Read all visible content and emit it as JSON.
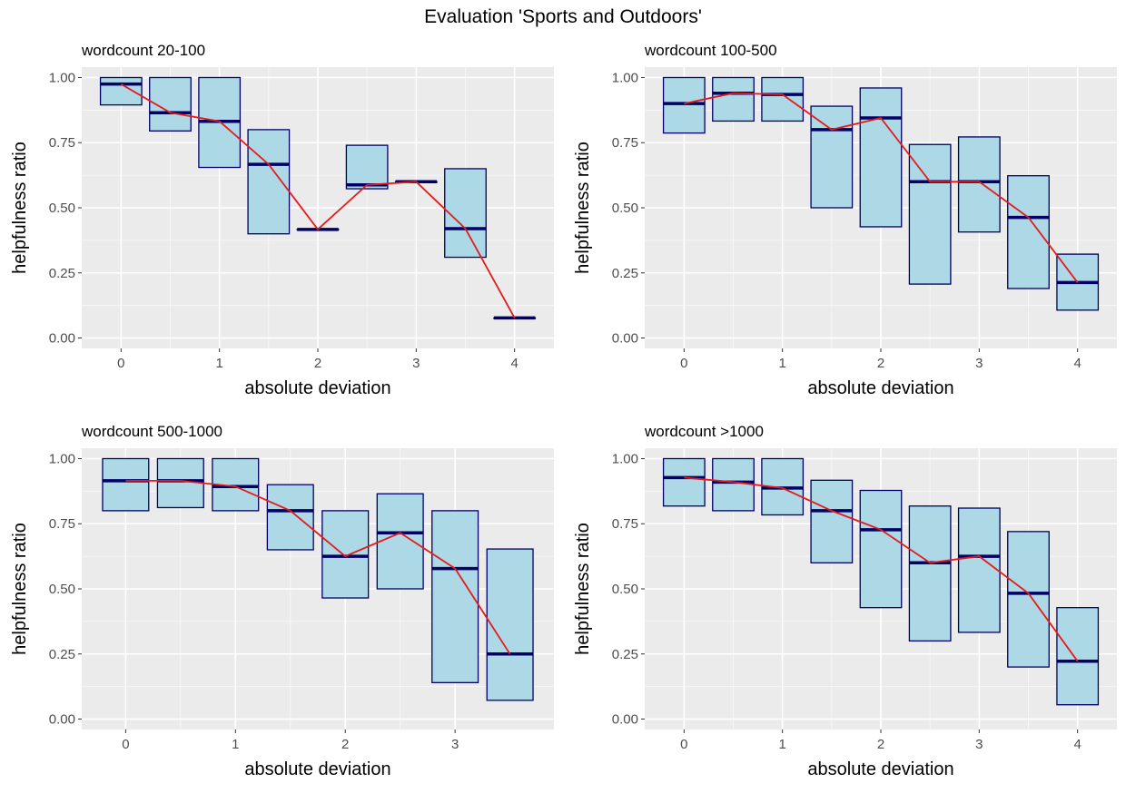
{
  "title": "Evaluation 'Sports and Outdoors'",
  "colors": {
    "panel_bg": "#EBEBEB",
    "grid": "#FFFFFF",
    "box_fill": "#ADD8E6",
    "box_stroke": "#000066",
    "median": "#000066",
    "line": "#E41A1C",
    "text": "#1A1A1A",
    "tick_text": "#4D4D4D"
  },
  "chart_data": [
    {
      "type": "box",
      "title": "wordcount 20-100",
      "xlabel": "absolute deviation",
      "ylabel": "helpfulness ratio",
      "xlim": [
        -0.4,
        4.4
      ],
      "ylim": [
        0,
        1
      ],
      "xticks": [
        0,
        1,
        2,
        3,
        4
      ],
      "yticks": [
        0,
        0.25,
        0.5,
        0.75,
        1
      ],
      "ytick_labels": [
        "0.00",
        "0.25",
        "0.50",
        "0.75",
        "1.00"
      ],
      "grid": true,
      "boxes": [
        {
          "x": 0,
          "q1": 0.895,
          "median": 0.975,
          "q3": 1.0
        },
        {
          "x": 0.5,
          "q1": 0.795,
          "median": 0.865,
          "q3": 1.0
        },
        {
          "x": 1,
          "q1": 0.655,
          "median": 0.832,
          "q3": 1.0
        },
        {
          "x": 1.5,
          "q1": 0.4,
          "median": 0.667,
          "q3": 0.8
        },
        {
          "x": 2,
          "q1": 0.417,
          "median": 0.417,
          "q3": 0.417
        },
        {
          "x": 2.5,
          "q1": 0.573,
          "median": 0.588,
          "q3": 0.74
        },
        {
          "x": 3,
          "q1": 0.6,
          "median": 0.6,
          "q3": 0.6
        },
        {
          "x": 3.5,
          "q1": 0.31,
          "median": 0.42,
          "q3": 0.65
        },
        {
          "x": 4,
          "q1": 0.077,
          "median": 0.077,
          "q3": 0.077
        }
      ]
    },
    {
      "type": "box",
      "title": "wordcount 100-500",
      "xlabel": "absolute deviation",
      "ylabel": "helpfulness ratio",
      "xlim": [
        -0.4,
        4.4
      ],
      "ylim": [
        0,
        1
      ],
      "xticks": [
        0,
        1,
        2,
        3,
        4
      ],
      "yticks": [
        0,
        0.25,
        0.5,
        0.75,
        1
      ],
      "ytick_labels": [
        "0.00",
        "0.25",
        "0.50",
        "0.75",
        "1.00"
      ],
      "grid": true,
      "boxes": [
        {
          "x": 0,
          "q1": 0.787,
          "median": 0.9,
          "q3": 1.0
        },
        {
          "x": 0.5,
          "q1": 0.833,
          "median": 0.94,
          "q3": 1.0
        },
        {
          "x": 1,
          "q1": 0.833,
          "median": 0.935,
          "q3": 1.0
        },
        {
          "x": 1.5,
          "q1": 0.5,
          "median": 0.8,
          "q3": 0.89
        },
        {
          "x": 2,
          "q1": 0.427,
          "median": 0.845,
          "q3": 0.96
        },
        {
          "x": 2.5,
          "q1": 0.207,
          "median": 0.6,
          "q3": 0.743
        },
        {
          "x": 3,
          "q1": 0.407,
          "median": 0.6,
          "q3": 0.772
        },
        {
          "x": 3.5,
          "q1": 0.19,
          "median": 0.463,
          "q3": 0.623
        },
        {
          "x": 4,
          "q1": 0.107,
          "median": 0.213,
          "q3": 0.322
        }
      ]
    },
    {
      "type": "box",
      "title": "wordcount 500-1000",
      "xlabel": "absolute deviation",
      "ylabel": "helpfulness ratio",
      "xlim": [
        -0.4,
        3.9
      ],
      "ylim": [
        0,
        1
      ],
      "xticks": [
        0,
        1,
        2,
        3
      ],
      "yticks": [
        0,
        0.25,
        0.5,
        0.75,
        1
      ],
      "ytick_labels": [
        "0.00",
        "0.25",
        "0.50",
        "0.75",
        "1.00"
      ],
      "grid": true,
      "boxes": [
        {
          "x": 0,
          "q1": 0.8,
          "median": 0.915,
          "q3": 1.0
        },
        {
          "x": 0.5,
          "q1": 0.812,
          "median": 0.915,
          "q3": 1.0
        },
        {
          "x": 1,
          "q1": 0.8,
          "median": 0.893,
          "q3": 1.0
        },
        {
          "x": 1.5,
          "q1": 0.65,
          "median": 0.8,
          "q3": 0.9
        },
        {
          "x": 2,
          "q1": 0.465,
          "median": 0.625,
          "q3": 0.8
        },
        {
          "x": 2.5,
          "q1": 0.5,
          "median": 0.715,
          "q3": 0.865
        },
        {
          "x": 3,
          "q1": 0.14,
          "median": 0.578,
          "q3": 0.8
        },
        {
          "x": 3.5,
          "q1": 0.072,
          "median": 0.25,
          "q3": 0.653
        }
      ]
    },
    {
      "type": "box",
      "title": "wordcount >1000",
      "xlabel": "absolute deviation",
      "ylabel": "helpfulness ratio",
      "xlim": [
        -0.4,
        4.4
      ],
      "ylim": [
        0,
        1
      ],
      "xticks": [
        0,
        1,
        2,
        3,
        4
      ],
      "yticks": [
        0,
        0.25,
        0.5,
        0.75,
        1
      ],
      "ytick_labels": [
        "0.00",
        "0.25",
        "0.50",
        "0.75",
        "1.00"
      ],
      "grid": true,
      "boxes": [
        {
          "x": 0,
          "q1": 0.818,
          "median": 0.927,
          "q3": 1.0
        },
        {
          "x": 0.5,
          "q1": 0.8,
          "median": 0.91,
          "q3": 1.0
        },
        {
          "x": 1,
          "q1": 0.784,
          "median": 0.887,
          "q3": 1.0
        },
        {
          "x": 1.5,
          "q1": 0.6,
          "median": 0.8,
          "q3": 0.917
        },
        {
          "x": 2,
          "q1": 0.428,
          "median": 0.727,
          "q3": 0.878
        },
        {
          "x": 2.5,
          "q1": 0.3,
          "median": 0.6,
          "q3": 0.818
        },
        {
          "x": 3,
          "q1": 0.333,
          "median": 0.625,
          "q3": 0.81
        },
        {
          "x": 3.5,
          "q1": 0.2,
          "median": 0.483,
          "q3": 0.72
        },
        {
          "x": 4,
          "q1": 0.055,
          "median": 0.222,
          "q3": 0.428
        }
      ]
    }
  ]
}
